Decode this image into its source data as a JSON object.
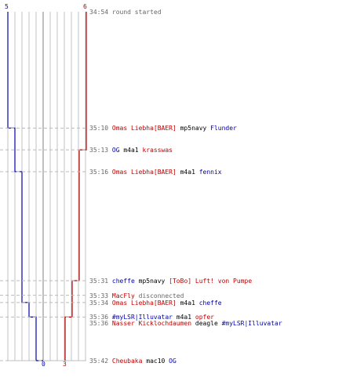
{
  "scores": {
    "blue_start": "5",
    "red_start": "6",
    "blue_end": "0",
    "red_end": "3"
  },
  "colors": {
    "blue": "#0000aa",
    "red": "#bb0000",
    "text": "#000000",
    "time": "#666666",
    "grid": "#c0c0c0",
    "dash": "#bbbbbb"
  },
  "chart_data": {
    "type": "line",
    "x_label": "",
    "y_label": "",
    "series": [
      {
        "color": "#0000aa",
        "points": [
          [
            "34:54",
            5
          ],
          [
            "35:10",
            4
          ],
          [
            "35:16",
            3
          ],
          [
            "35:34",
            2
          ],
          [
            "35:36",
            1
          ],
          [
            "35:42",
            0
          ]
        ]
      },
      {
        "color": "#bb0000",
        "points": [
          [
            "34:54",
            6
          ],
          [
            "35:13",
            5
          ],
          [
            "35:31",
            4
          ],
          [
            "35:36",
            3
          ]
        ]
      }
    ]
  },
  "events": [
    {
      "time": "34:54",
      "parts": [
        {
          "text": "round started",
          "color": "#666666"
        }
      ]
    },
    {
      "time": "35:10",
      "parts": [
        {
          "text": "Omas Liebha[BAER]",
          "color": "#bb0000"
        },
        {
          "text": " mp5navy ",
          "color": "#000000"
        },
        {
          "text": "Flunder",
          "color": "#0000aa"
        }
      ]
    },
    {
      "time": "35:13",
      "parts": [
        {
          "text": "OG",
          "color": "#0000aa"
        },
        {
          "text": " m4a1 ",
          "color": "#000000"
        },
        {
          "text": "krasswas",
          "color": "#bb0000"
        }
      ]
    },
    {
      "time": "35:16",
      "parts": [
        {
          "text": "Omas Liebha[BAER]",
          "color": "#bb0000"
        },
        {
          "text": " m4a1 ",
          "color": "#000000"
        },
        {
          "text": "fennix",
          "color": "#0000aa"
        }
      ]
    },
    {
      "time": "35:31",
      "parts": [
        {
          "text": "cheffe",
          "color": "#0000aa"
        },
        {
          "text": " mp5navy ",
          "color": "#000000"
        },
        {
          "text": "[ToBo] Luft! von Pumpe",
          "color": "#bb0000"
        }
      ]
    },
    {
      "time": "35:33",
      "parts": [
        {
          "text": "MacFly",
          "color": "#bb0000"
        },
        {
          "text": " disconnected",
          "color": "#666666"
        }
      ]
    },
    {
      "time": "35:34",
      "parts": [
        {
          "text": "Omas Liebha[BAER]",
          "color": "#bb0000"
        },
        {
          "text": " m4a1 ",
          "color": "#000000"
        },
        {
          "text": "cheffe",
          "color": "#0000aa"
        }
      ]
    },
    {
      "time": "35:36",
      "parts": [
        {
          "text": "#myLSR|Illuvatar",
          "color": "#0000aa"
        },
        {
          "text": " m4a1 ",
          "color": "#000000"
        },
        {
          "text": "opfer",
          "color": "#bb0000"
        }
      ]
    },
    {
      "time": "35:36",
      "parts": [
        {
          "text": "Nasser Kicklochdaumen",
          "color": "#bb0000"
        },
        {
          "text": " deagle ",
          "color": "#000000"
        },
        {
          "text": "#myLSR|Illuvatar",
          "color": "#0000aa"
        }
      ]
    },
    {
      "time": "35:42",
      "parts": [
        {
          "text": "Cheubaka",
          "color": "#bb0000"
        },
        {
          "text": " mac10 ",
          "color": "#000000"
        },
        {
          "text": "OG",
          "color": "#0000aa"
        }
      ]
    }
  ]
}
